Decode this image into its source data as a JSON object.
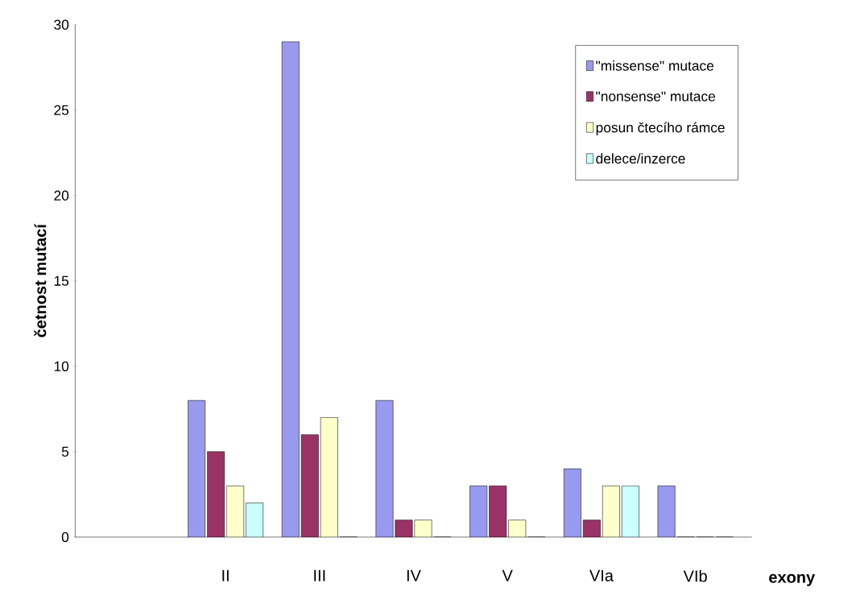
{
  "chart_data": {
    "type": "bar",
    "xlabel": "exony",
    "ylabel": "četnost mutací",
    "categories": [
      null,
      "II",
      "III",
      "IV",
      "V",
      "VIa",
      "VIb"
    ],
    "series": [
      {
        "name": "\"missense\" mutace",
        "color": "#9999ee",
        "values": [
          null,
          8,
          29,
          8,
          3,
          4,
          3
        ]
      },
      {
        "name": "\"nonsense\" mutace",
        "color": "#993366",
        "values": [
          null,
          5,
          6,
          1,
          3,
          1,
          0
        ]
      },
      {
        "name": "posun čtecího rámce",
        "color": "#ffffcc",
        "values": [
          null,
          3,
          7,
          1,
          1,
          3,
          0
        ]
      },
      {
        "name": "delece/inzerce",
        "color": "#ccffff",
        "values": [
          null,
          2,
          0,
          0,
          0,
          3,
          0
        ]
      }
    ],
    "ylim": [
      0,
      30
    ],
    "yticks": [
      0,
      5,
      10,
      15,
      20,
      25,
      30
    ],
    "legend": "top right",
    "grid": false
  }
}
